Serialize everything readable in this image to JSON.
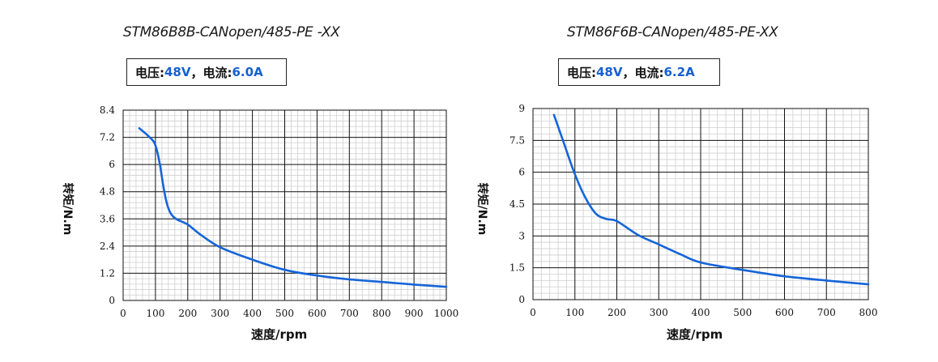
{
  "charts": [
    {
      "title": "STM86B8B-CANopen/485-PE -XX",
      "spec": {
        "voltage_label": "电压: ",
        "voltage_value": "48V",
        "sep": "，",
        "current_label": "电流: ",
        "current_value": "6.0A"
      }
    },
    {
      "title": "STM86F6B-CANopen/485-PE-XX",
      "spec": {
        "voltage_label": "电压: ",
        "voltage_value": "48V",
        "sep": "，",
        "current_label": "电流: ",
        "current_value": "6.2A"
      }
    }
  ],
  "colors": {
    "curve": "#1565d8",
    "grid_major": "#111111",
    "grid_minor": "#cfcfcf",
    "spec_value": "#1560d0"
  },
  "chart_data": [
    {
      "type": "line",
      "title": "STM86B8B-CANopen/485-PE -XX",
      "xlabel": "速度/rpm",
      "ylabel": "转矩/N.m",
      "xlim": [
        0,
        1000
      ],
      "ylim": [
        0,
        8.4
      ],
      "xticks": [
        "0",
        "100",
        "200",
        "300",
        "400",
        "500",
        "600",
        "700",
        "800",
        "900",
        "1000"
      ],
      "yticks": [
        "0",
        "1.2",
        "2.4",
        "3.6",
        "4.8",
        "6",
        "7.2",
        "8.4"
      ],
      "grid": true,
      "series": [
        {
          "x": [
            50,
            75,
            95,
            105,
            115,
            125,
            135,
            145,
            155,
            170,
            200,
            240,
            300,
            400,
            500,
            600,
            700,
            800,
            900,
            1000
          ],
          "y": [
            7.6,
            7.3,
            7.0,
            6.6,
            5.9,
            5.0,
            4.3,
            3.9,
            3.7,
            3.55,
            3.35,
            2.9,
            2.35,
            1.8,
            1.35,
            1.1,
            0.93,
            0.82,
            0.7,
            0.6
          ]
        }
      ]
    },
    {
      "type": "line",
      "title": "STM86F6B-CANopen/485-PE-XX",
      "xlabel": "速度/rpm",
      "ylabel": "转矩/N.m",
      "xlim": [
        0,
        800
      ],
      "ylim": [
        0,
        9
      ],
      "xticks": [
        "0",
        "100",
        "200",
        "300",
        "400",
        "500",
        "600",
        "700",
        "800"
      ],
      "yticks": [
        "0",
        "1.5",
        "3",
        "4.5",
        "6",
        "7.5",
        "9"
      ],
      "grid": true,
      "series": [
        {
          "x": [
            50,
            75,
            100,
            125,
            150,
            175,
            200,
            250,
            300,
            350,
            400,
            500,
            600,
            700,
            800
          ],
          "y": [
            8.7,
            7.3,
            5.9,
            4.8,
            4.05,
            3.8,
            3.7,
            3.05,
            2.6,
            2.15,
            1.75,
            1.4,
            1.1,
            0.9,
            0.72
          ]
        }
      ]
    }
  ]
}
